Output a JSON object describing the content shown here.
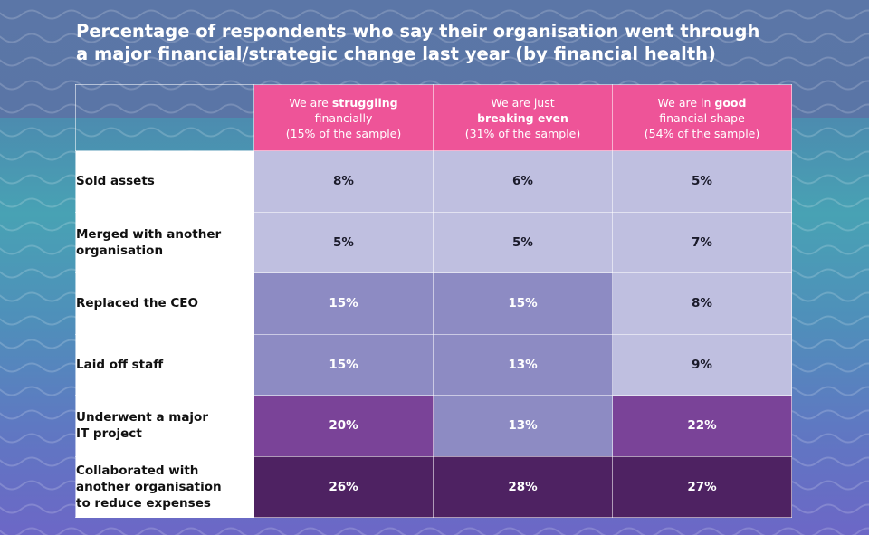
{
  "title_line1": "Percentage of respondents who say their organisation went through",
  "title_line2": "a major financial/strategic change last year (by financial health)",
  "columns": [
    {
      "pre": "We are ",
      "bold": "struggling",
      "post": "",
      "line2": "financially",
      "line3": "(15% of the sample)"
    },
    {
      "pre": "We are just",
      "bold": "",
      "post": "",
      "line2b": "breaking even",
      "line3": "(31% of the sample)"
    },
    {
      "pre": "We are in ",
      "bold": "good",
      "post": "",
      "line2": "financial shape",
      "line3": "(54% of the sample)"
    }
  ],
  "colors": {
    "header": "#ee5498",
    "level_light": "#bfbfe0",
    "level_mid": "#8d8bc3",
    "level_purple": "#7a4398",
    "level_dark": "#4e2262"
  },
  "chart_data": {
    "type": "table",
    "title": "Percentage of respondents who say their organisation went through a major financial/strategic change last year (by financial health)",
    "columns": [
      "We are struggling financially (15% of the sample)",
      "We are just breaking even (31% of the sample)",
      "We are in good financial shape (54% of the sample)"
    ],
    "rows": [
      {
        "label": "Sold assets",
        "values": [
          8,
          6,
          5
        ],
        "display": [
          "8%",
          "6%",
          "5%"
        ]
      },
      {
        "label": "Merged with another organisation",
        "values": [
          5,
          5,
          7
        ],
        "display": [
          "5%",
          "5%",
          "7%"
        ]
      },
      {
        "label": "Replaced the CEO",
        "values": [
          15,
          15,
          8
        ],
        "display": [
          "15%",
          "15%",
          "8%"
        ]
      },
      {
        "label": "Laid off staff",
        "values": [
          15,
          13,
          9
        ],
        "display": [
          "15%",
          "13%",
          "9%"
        ]
      },
      {
        "label": "Underwent a major IT project",
        "values": [
          20,
          13,
          22
        ],
        "display": [
          "20%",
          "13%",
          "22%"
        ]
      },
      {
        "label": "Collaborated with another organisation to reduce expenses",
        "values": [
          26,
          28,
          27
        ],
        "display": [
          "26%",
          "28%",
          "27%"
        ]
      }
    ],
    "row_label_lines": [
      [
        "Sold assets"
      ],
      [
        "Merged with another",
        "organisation"
      ],
      [
        "Replaced the CEO"
      ],
      [
        "Laid off staff"
      ],
      [
        "Underwent a major",
        "IT project"
      ],
      [
        "Collaborated with",
        "another organisation",
        "to reduce expenses"
      ]
    ]
  }
}
